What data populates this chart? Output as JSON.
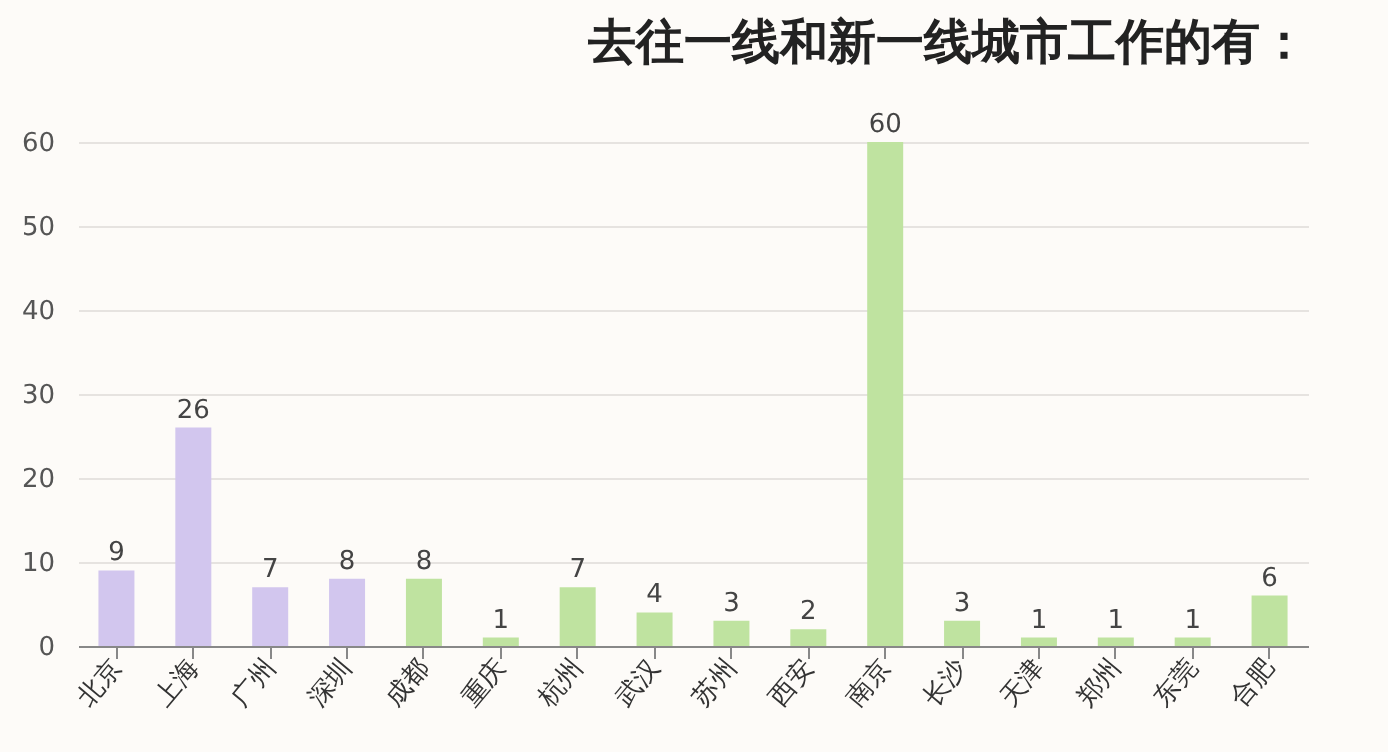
{
  "chart_data": {
    "type": "bar",
    "title": "去往一线和新一线城市工作的有：",
    "categories": [
      "北京",
      "上海",
      "广州",
      "深圳",
      "成都",
      "重庆",
      "杭州",
      "武汉",
      "苏州",
      "西安",
      "南京",
      "长沙",
      "天津",
      "郑州",
      "东莞",
      "合肥"
    ],
    "values": [
      9,
      26,
      7,
      8,
      8,
      1,
      7,
      4,
      3,
      2,
      60,
      3,
      1,
      1,
      1,
      6
    ],
    "colors": [
      "#d2c6ee",
      "#d2c6ee",
      "#d2c6ee",
      "#d2c6ee",
      "#bfe3a0",
      "#bfe3a0",
      "#bfe3a0",
      "#bfe3a0",
      "#bfe3a0",
      "#bfe3a0",
      "#bfe3a0",
      "#bfe3a0",
      "#bfe3a0",
      "#bfe3a0",
      "#bfe3a0",
      "#bfe3a0"
    ],
    "ylim": [
      0,
      60
    ],
    "yticks": [
      0,
      10,
      20,
      30,
      40,
      50,
      60
    ],
    "grid": "y",
    "data_labels": true
  }
}
